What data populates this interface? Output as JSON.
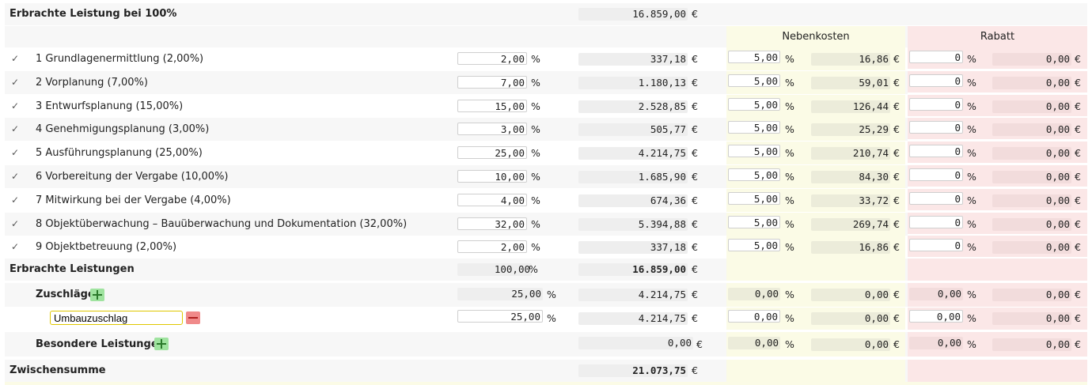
{
  "top": {
    "label": "Erbrachte Leistung bei 100%",
    "total": "16.859,00",
    "currency": "€"
  },
  "headers": {
    "nebenkosten": "Nebenkosten",
    "rabatt": "Rabatt"
  },
  "phases": [
    {
      "check": "✓",
      "label": "1 Grundlagenermittlung (2,00%)",
      "pct": "2,00",
      "amount": "337,18",
      "nk_pct": "5,00",
      "nk_amount": "16,86",
      "rb_pct": "0",
      "rb_amount": "0,00"
    },
    {
      "check": "✓",
      "label": "2 Vorplanung (7,00%)",
      "pct": "7,00",
      "amount": "1.180,13",
      "nk_pct": "5,00",
      "nk_amount": "59,01",
      "rb_pct": "0",
      "rb_amount": "0,00"
    },
    {
      "check": "✓",
      "label": "3 Entwurfsplanung (15,00%)",
      "pct": "15,00",
      "amount": "2.528,85",
      "nk_pct": "5,00",
      "nk_amount": "126,44",
      "rb_pct": "0",
      "rb_amount": "0,00"
    },
    {
      "check": "✓",
      "label": "4 Genehmigungsplanung (3,00%)",
      "pct": "3,00",
      "amount": "505,77",
      "nk_pct": "5,00",
      "nk_amount": "25,29",
      "rb_pct": "0",
      "rb_amount": "0,00"
    },
    {
      "check": "✓",
      "label": "5 Ausführungsplanung (25,00%)",
      "pct": "25,00",
      "amount": "4.214,75",
      "nk_pct": "5,00",
      "nk_amount": "210,74",
      "rb_pct": "0",
      "rb_amount": "0,00"
    },
    {
      "check": "✓",
      "label": "6 Vorbereitung der Vergabe (10,00%)",
      "pct": "10,00",
      "amount": "1.685,90",
      "nk_pct": "5,00",
      "nk_amount": "84,30",
      "rb_pct": "0",
      "rb_amount": "0,00"
    },
    {
      "check": "✓",
      "label": "7 Mitwirkung bei der Vergabe (4,00%)",
      "pct": "4,00",
      "amount": "674,36",
      "nk_pct": "5,00",
      "nk_amount": "33,72",
      "rb_pct": "0",
      "rb_amount": "0,00"
    },
    {
      "check": "✓",
      "label": "8 Objektüberwachung – Bauüberwachung und Dokumentation (32,00%)",
      "pct": "32,00",
      "amount": "5.394,88",
      "nk_pct": "5,00",
      "nk_amount": "269,74",
      "rb_pct": "0",
      "rb_amount": "0,00"
    },
    {
      "check": "✓",
      "label": "9 Objektbetreuung (2,00%)",
      "pct": "2,00",
      "amount": "337,18",
      "nk_pct": "5,00",
      "nk_amount": "16,86",
      "rb_pct": "0",
      "rb_amount": "0,00"
    }
  ],
  "pct_unit": "%",
  "summary": {
    "label": "Erbrachte Leistungen",
    "pct": "100,00",
    "total": "16.859,00"
  },
  "zuschlaege": {
    "label": "Zuschläge",
    "pct": "25,00",
    "amount": "4.214,75",
    "nk_pct": "0,00",
    "nk_amount": "0,00",
    "rb_pct": "0,00",
    "rb_amount": "0,00"
  },
  "umbau": {
    "name": "Umbauzuschlag",
    "pct": "25,00",
    "amount": "4.214,75",
    "nk_pct": "0,00",
    "nk_amount": "0,00",
    "rb_pct": "0,00",
    "rb_amount": "0,00"
  },
  "besondere": {
    "label": "Besondere Leistungen",
    "amount": "0,00",
    "nk_pct": "0,00",
    "nk_amount": "0,00",
    "rb_pct": "0,00",
    "rb_amount": "0,00"
  },
  "zwischensumme": {
    "label": "Zwischensumme",
    "total": "21.073,75"
  }
}
